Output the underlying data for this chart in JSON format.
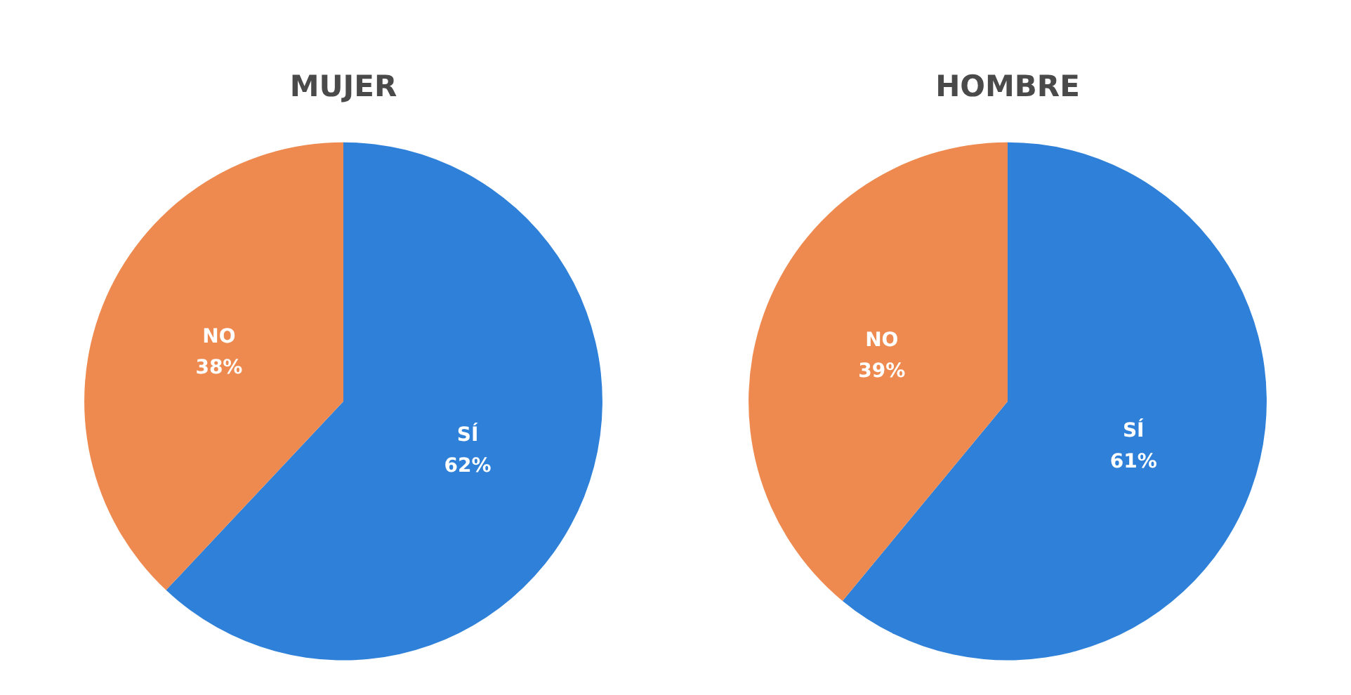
{
  "chart_data": [
    {
      "type": "pie",
      "title": "MUJER",
      "categories": [
        "SÍ",
        "NO"
      ],
      "values": [
        62,
        38
      ],
      "colors": [
        "#2f80d8",
        "#ee8a4f"
      ],
      "value_labels": [
        "62%",
        "38%"
      ]
    },
    {
      "type": "pie",
      "title": "HOMBRE",
      "categories": [
        "SÍ",
        "NO"
      ],
      "values": [
        61,
        39
      ],
      "colors": [
        "#2f80d8",
        "#ee8a4f"
      ],
      "value_labels": [
        "61%",
        "39%"
      ]
    }
  ]
}
